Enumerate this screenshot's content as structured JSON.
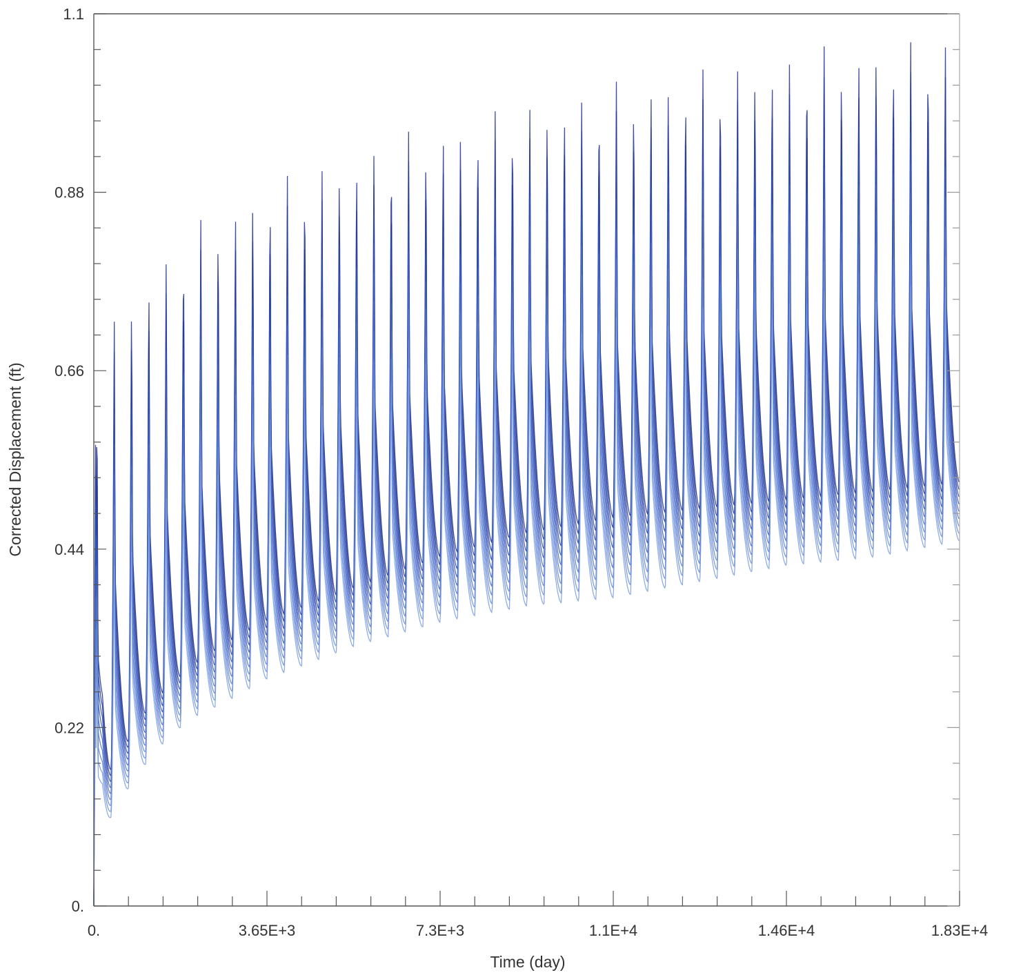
{
  "chart_data": {
    "type": "line",
    "title": "",
    "xlabel": "Time (day)",
    "ylabel": "Corrected Displacement (ft)",
    "xlim": [
      0,
      18250
    ],
    "ylim": [
      0,
      1.1
    ],
    "x_tick_labels": [
      "0.",
      "3.65E+3",
      "7.3E+3",
      "1.1E+4",
      "1.46E+4",
      "1.83E+4"
    ],
    "x_tick_values": [
      0,
      3650,
      7300,
      10950,
      14600,
      18250
    ],
    "y_tick_labels": [
      "0.",
      "0.22",
      "0.44",
      "0.66",
      "0.88",
      "1.1"
    ],
    "y_tick_values": [
      0,
      0.22,
      0.44,
      0.66,
      0.88,
      1.1
    ],
    "grid": false,
    "legend": "none",
    "cycle_period_days": 365,
    "cycles": 50,
    "series_color": "#2f4fb0",
    "series_style": "seasonal sawtooth, many overlapping curves",
    "envelope": {
      "time": [
        0,
        182,
        547,
        912,
        1277,
        1642,
        2007,
        2737,
        3650,
        5475,
        7300,
        9125,
        10950,
        12775,
        14600,
        16425,
        18250
      ],
      "peak_max": [
        0.61,
        0.72,
        0.75,
        0.78,
        0.8,
        0.82,
        0.84,
        0.87,
        0.9,
        0.94,
        0.97,
        1.0,
        1.02,
        1.04,
        1.06,
        1.07,
        1.08
      ],
      "trough_min": [
        0.0,
        0.09,
        0.13,
        0.16,
        0.19,
        0.21,
        0.23,
        0.25,
        0.28,
        0.32,
        0.35,
        0.37,
        0.38,
        0.4,
        0.42,
        0.43,
        0.45
      ],
      "trough_upper": [
        0.0,
        0.16,
        0.19,
        0.23,
        0.26,
        0.28,
        0.3,
        0.33,
        0.36,
        0.4,
        0.44,
        0.47,
        0.49,
        0.5,
        0.51,
        0.52,
        0.53
      ]
    }
  }
}
